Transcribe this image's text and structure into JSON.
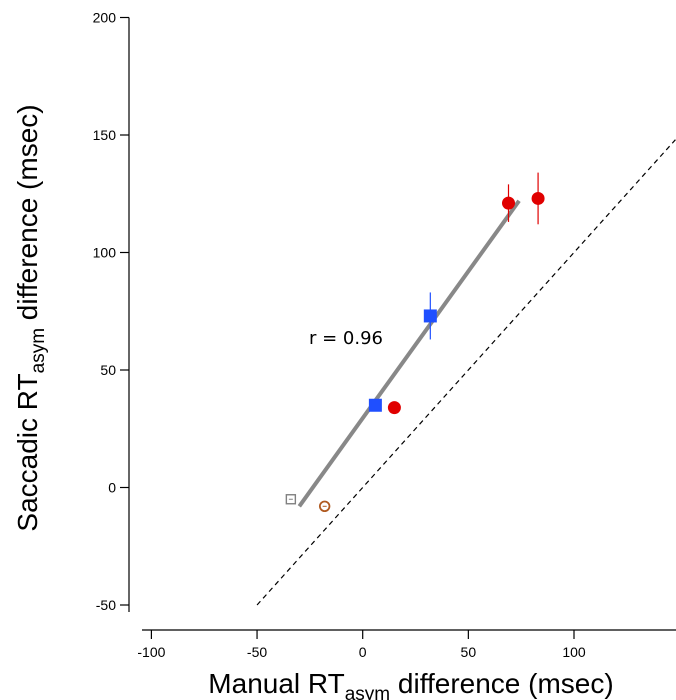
{
  "chart_data": {
    "type": "scatter",
    "title": "",
    "xlabel": {
      "prefix": "Manual RT",
      "sub": "asym",
      "suffix": " difference (msec)"
    },
    "ylabel": {
      "prefix": "Saccadic RT",
      "sub": "asym",
      "suffix": " difference (msec)"
    },
    "xlim": [
      -110,
      148
    ],
    "ylim": [
      -55,
      200
    ],
    "x_ticks": [
      -100,
      -50,
      0,
      50,
      100
    ],
    "y_ticks": [
      -50,
      0,
      50,
      100,
      150,
      200
    ],
    "grid": false,
    "annotation": "r = 0.96",
    "colors": {
      "red": "#e00000",
      "blue": "#1f4fff",
      "gray": "#808080",
      "brown": "#b05a20",
      "regression": "#888888",
      "identity": "#000000"
    },
    "series": [
      {
        "marker": "circle",
        "color": "#e00000",
        "points": [
          {
            "x": 69,
            "y": 121,
            "err_y": 8
          },
          {
            "x": 83,
            "y": 123,
            "err_y": 11
          },
          {
            "x": 15,
            "y": 34,
            "err_y": 2
          }
        ]
      },
      {
        "marker": "square",
        "color": "#1f4fff",
        "points": [
          {
            "x": 32,
            "y": 73,
            "err_y": 10
          },
          {
            "x": 6,
            "y": 35,
            "err_y": 2
          }
        ]
      },
      {
        "marker": "square-open",
        "color": "#808080",
        "points": [
          {
            "x": -34,
            "y": -5,
            "err_y": 1
          }
        ]
      },
      {
        "marker": "circle-open",
        "color": "#b05a20",
        "points": [
          {
            "x": -18,
            "y": -8,
            "err_y": 1
          }
        ]
      }
    ],
    "regression_line": {
      "x": [
        -30,
        74
      ],
      "y": [
        -8,
        122
      ]
    },
    "identity_line": {
      "x": [
        -50,
        148
      ],
      "y": [
        -50,
        148
      ]
    }
  }
}
